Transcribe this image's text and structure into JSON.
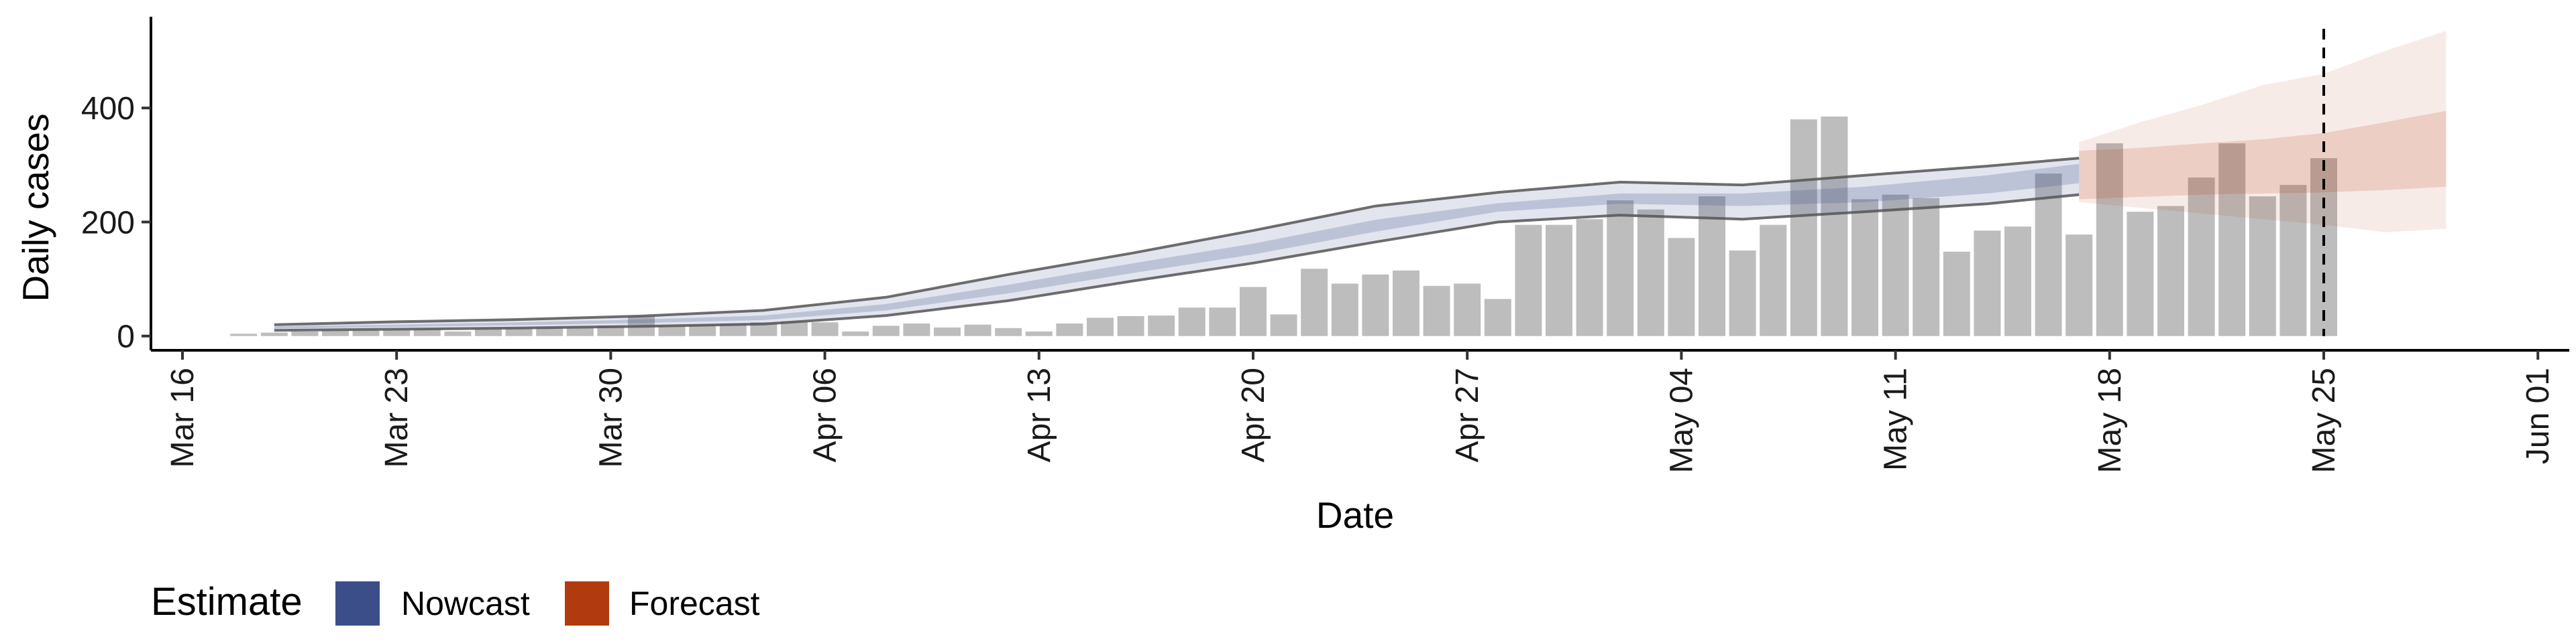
{
  "chart_data": {
    "type": "bar",
    "title": "",
    "xlabel": "Date",
    "ylabel": "Daily cases",
    "x_tick_labels": [
      "Mar 16",
      "Mar 23",
      "Mar 30",
      "Apr 06",
      "Apr 13",
      "Apr 20",
      "Apr 27",
      "May 04",
      "May 11",
      "May 18",
      "May 25",
      "Jun 01"
    ],
    "y_ticks": [
      0,
      200,
      400
    ],
    "ylim": [
      -25,
      560
    ],
    "xlim_dates": [
      "2020-03-16",
      "2020-06-01"
    ],
    "vertical_line_date": "2020-05-25",
    "legend": {
      "title": "Estimate",
      "position": "bottom-left",
      "items": [
        {
          "label": "Nowcast",
          "color": "#3C4E8A"
        },
        {
          "label": "Forecast",
          "color": "#B23A0F"
        }
      ]
    },
    "colors": {
      "bars": "#BDBDBD",
      "nowcast": "#3C4E8A",
      "forecast": "#B23A0F"
    },
    "reported_cases": {
      "dates": [
        "2020-03-18",
        "2020-03-19",
        "2020-03-20",
        "2020-03-21",
        "2020-03-22",
        "2020-03-23",
        "2020-03-24",
        "2020-03-25",
        "2020-03-26",
        "2020-03-27",
        "2020-03-28",
        "2020-03-29",
        "2020-03-30",
        "2020-03-31",
        "2020-04-01",
        "2020-04-02",
        "2020-04-03",
        "2020-04-04",
        "2020-04-05",
        "2020-04-06",
        "2020-04-07",
        "2020-04-08",
        "2020-04-09",
        "2020-04-10",
        "2020-04-11",
        "2020-04-12",
        "2020-04-13",
        "2020-04-14",
        "2020-04-15",
        "2020-04-16",
        "2020-04-17",
        "2020-04-18",
        "2020-04-19",
        "2020-04-20",
        "2020-04-21",
        "2020-04-22",
        "2020-04-23",
        "2020-04-24",
        "2020-04-25",
        "2020-04-26",
        "2020-04-27",
        "2020-04-28",
        "2020-04-29",
        "2020-04-30",
        "2020-05-01",
        "2020-05-02",
        "2020-05-03",
        "2020-05-04",
        "2020-05-05",
        "2020-05-06",
        "2020-05-07",
        "2020-05-08",
        "2020-05-09",
        "2020-05-10",
        "2020-05-11",
        "2020-05-12",
        "2020-05-13",
        "2020-05-14",
        "2020-05-15",
        "2020-05-16",
        "2020-05-17",
        "2020-05-18",
        "2020-05-19",
        "2020-05-20",
        "2020-05-21",
        "2020-05-22",
        "2020-05-23",
        "2020-05-24",
        "2020-05-25"
      ],
      "values": [
        4,
        6,
        8,
        10,
        10,
        11,
        12,
        8,
        13,
        14,
        15,
        15,
        18,
        35,
        18,
        20,
        22,
        24,
        26,
        24,
        8,
        18,
        22,
        15,
        20,
        14,
        8,
        22,
        32,
        35,
        36,
        50,
        50,
        86,
        38,
        118,
        92,
        108,
        115,
        88,
        92,
        65,
        195,
        195,
        205,
        238,
        222,
        172,
        245,
        150,
        195,
        380,
        385,
        240,
        248,
        242,
        148,
        185,
        192,
        285,
        178,
        338,
        218,
        228,
        278,
        338,
        245,
        265,
        312
      ]
    },
    "nowcast": {
      "dates": [
        "2020-03-19",
        "2020-03-23",
        "2020-03-27",
        "2020-03-31",
        "2020-04-04",
        "2020-04-08",
        "2020-04-12",
        "2020-04-16",
        "2020-04-20",
        "2020-04-24",
        "2020-04-28",
        "2020-05-02",
        "2020-05-06",
        "2020-05-10",
        "2020-05-14",
        "2020-05-17"
      ],
      "median": [
        15,
        18,
        21,
        26,
        32,
        50,
        82,
        118,
        152,
        193,
        225,
        240,
        238,
        248,
        265,
        285
      ],
      "inner_lower": [
        13,
        16,
        19,
        23,
        28,
        45,
        75,
        110,
        143,
        183,
        218,
        232,
        228,
        235,
        250,
        268
      ],
      "inner_upper": [
        17,
        20,
        24,
        29,
        36,
        56,
        90,
        127,
        162,
        204,
        233,
        250,
        250,
        262,
        282,
        302
      ],
      "outer_lower": [
        10,
        12,
        14,
        17,
        21,
        36,
        62,
        96,
        128,
        165,
        200,
        212,
        205,
        218,
        232,
        248
      ],
      "outer_upper": [
        20,
        25,
        29,
        35,
        45,
        68,
        108,
        145,
        185,
        228,
        252,
        270,
        265,
        282,
        298,
        312
      ]
    },
    "forecast": {
      "dates": [
        "2020-05-17",
        "2020-05-19",
        "2020-05-21",
        "2020-05-23",
        "2020-05-25",
        "2020-05-27",
        "2020-05-29"
      ],
      "inner_lower": [
        240,
        244,
        248,
        250,
        252,
        256,
        262
      ],
      "inner_upper": [
        325,
        330,
        338,
        345,
        356,
        375,
        395
      ],
      "outer_lower": [
        235,
        225,
        215,
        205,
        195,
        182,
        188
      ],
      "outer_upper": [
        340,
        375,
        405,
        440,
        460,
        500,
        535
      ]
    }
  }
}
